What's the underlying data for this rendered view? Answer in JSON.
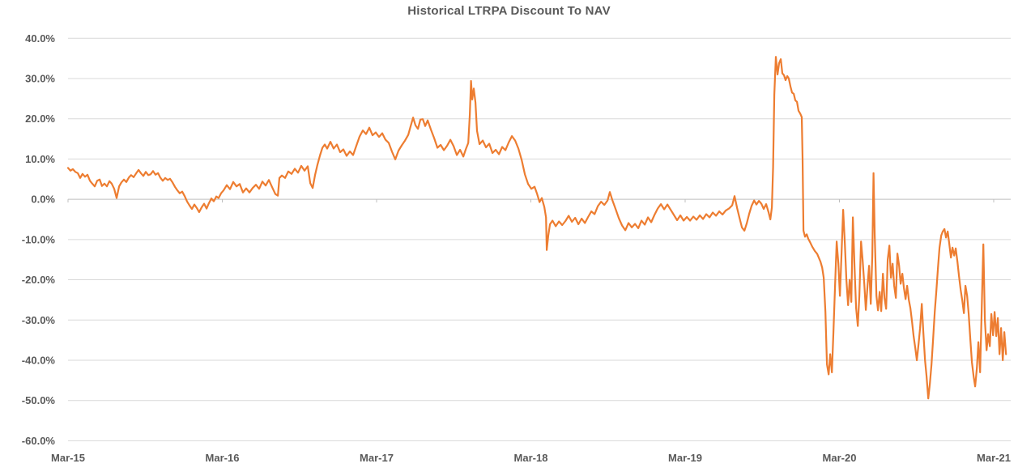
{
  "chart_data": {
    "type": "line",
    "title": "Historical LTRPA Discount To NAV",
    "series_name": "LTRPA Discount To NAV",
    "x_unit": "years since Mar-2015",
    "y_unit": "percent",
    "xlim": [
      0,
      6.1
    ],
    "ylim": [
      -60,
      40
    ],
    "grid": true,
    "legend_position": "none",
    "x_ticks": [
      {
        "t": 0,
        "label": "Mar-15"
      },
      {
        "t": 1,
        "label": "Mar-16"
      },
      {
        "t": 2,
        "label": "Mar-17"
      },
      {
        "t": 3,
        "label": "Mar-18"
      },
      {
        "t": 4,
        "label": "Mar-19"
      },
      {
        "t": 5,
        "label": "Mar-20"
      },
      {
        "t": 6,
        "label": "Mar-21"
      }
    ],
    "y_ticks": [
      {
        "v": 40,
        "label": "40.0%"
      },
      {
        "v": 30,
        "label": "30.0%"
      },
      {
        "v": 20,
        "label": "20.0%"
      },
      {
        "v": 10,
        "label": "10.0%"
      },
      {
        "v": 0,
        "label": "0.0%"
      },
      {
        "v": -10,
        "label": "-10.0%"
      },
      {
        "v": -20,
        "label": "-20.0%"
      },
      {
        "v": -30,
        "label": "-30.0%"
      },
      {
        "v": -40,
        "label": "-40.0%"
      },
      {
        "v": -50,
        "label": "-50.0%"
      },
      {
        "v": -60,
        "label": "-60.0%"
      }
    ],
    "colors": {
      "line": "#ED7D31",
      "grid": "#D9D9D9",
      "axis": "#BFBFBF",
      "text": "#595959",
      "background": "#FFFFFF"
    },
    "points": [
      [
        0.0,
        7.8
      ],
      [
        0.016,
        7.1
      ],
      [
        0.031,
        7.5
      ],
      [
        0.047,
        6.8
      ],
      [
        0.063,
        6.5
      ],
      [
        0.079,
        5.3
      ],
      [
        0.094,
        6.3
      ],
      [
        0.11,
        5.6
      ],
      [
        0.126,
        6.1
      ],
      [
        0.142,
        4.6
      ],
      [
        0.157,
        3.9
      ],
      [
        0.173,
        3.2
      ],
      [
        0.189,
        4.6
      ],
      [
        0.205,
        4.9
      ],
      [
        0.22,
        3.3
      ],
      [
        0.236,
        3.9
      ],
      [
        0.252,
        3.2
      ],
      [
        0.268,
        4.5
      ],
      [
        0.283,
        3.9
      ],
      [
        0.299,
        2.6
      ],
      [
        0.315,
        0.3
      ],
      [
        0.331,
        3.2
      ],
      [
        0.346,
        4.2
      ],
      [
        0.362,
        4.9
      ],
      [
        0.378,
        4.3
      ],
      [
        0.394,
        5.4
      ],
      [
        0.409,
        6.0
      ],
      [
        0.425,
        5.5
      ],
      [
        0.441,
        6.4
      ],
      [
        0.457,
        7.3
      ],
      [
        0.472,
        6.5
      ],
      [
        0.488,
        5.8
      ],
      [
        0.504,
        6.8
      ],
      [
        0.52,
        6.0
      ],
      [
        0.535,
        6.2
      ],
      [
        0.551,
        7.0
      ],
      [
        0.567,
        6.1
      ],
      [
        0.583,
        6.5
      ],
      [
        0.598,
        5.4
      ],
      [
        0.614,
        4.6
      ],
      [
        0.63,
        5.3
      ],
      [
        0.646,
        4.8
      ],
      [
        0.661,
        5.1
      ],
      [
        0.677,
        4.2
      ],
      [
        0.693,
        3.1
      ],
      [
        0.709,
        2.2
      ],
      [
        0.724,
        1.5
      ],
      [
        0.74,
        1.9
      ],
      [
        0.756,
        0.8
      ],
      [
        0.772,
        -0.6
      ],
      [
        0.787,
        -1.5
      ],
      [
        0.803,
        -2.4
      ],
      [
        0.819,
        -1.3
      ],
      [
        0.835,
        -2.2
      ],
      [
        0.85,
        -3.2
      ],
      [
        0.866,
        -2.0
      ],
      [
        0.882,
        -1.1
      ],
      [
        0.898,
        -2.3
      ],
      [
        0.913,
        -1.0
      ],
      [
        0.929,
        0.2
      ],
      [
        0.945,
        -0.5
      ],
      [
        0.961,
        0.7
      ],
      [
        0.976,
        0.3
      ],
      [
        0.992,
        1.5
      ],
      [
        1.008,
        2.2
      ],
      [
        1.029,
        3.5
      ],
      [
        1.05,
        2.5
      ],
      [
        1.071,
        4.3
      ],
      [
        1.092,
        3.2
      ],
      [
        1.113,
        3.8
      ],
      [
        1.134,
        1.7
      ],
      [
        1.155,
        2.7
      ],
      [
        1.176,
        1.7
      ],
      [
        1.197,
        2.8
      ],
      [
        1.218,
        3.6
      ],
      [
        1.239,
        2.6
      ],
      [
        1.26,
        4.4
      ],
      [
        1.281,
        3.4
      ],
      [
        1.302,
        4.8
      ],
      [
        1.323,
        3.0
      ],
      [
        1.344,
        1.3
      ],
      [
        1.36,
        0.9
      ],
      [
        1.37,
        5.3
      ],
      [
        1.386,
        5.9
      ],
      [
        1.407,
        5.3
      ],
      [
        1.428,
        6.9
      ],
      [
        1.449,
        6.3
      ],
      [
        1.47,
        7.6
      ],
      [
        1.491,
        6.6
      ],
      [
        1.512,
        8.3
      ],
      [
        1.533,
        7.1
      ],
      [
        1.554,
        8.2
      ],
      [
        1.57,
        4.0
      ],
      [
        1.586,
        2.8
      ],
      [
        1.601,
        6.0
      ],
      [
        1.617,
        8.6
      ],
      [
        1.633,
        10.9
      ],
      [
        1.649,
        12.8
      ],
      [
        1.664,
        13.6
      ],
      [
        1.68,
        12.6
      ],
      [
        1.701,
        14.3
      ],
      [
        1.722,
        12.6
      ],
      [
        1.743,
        13.6
      ],
      [
        1.764,
        11.7
      ],
      [
        1.785,
        12.4
      ],
      [
        1.806,
        10.8
      ],
      [
        1.827,
        11.9
      ],
      [
        1.848,
        11.0
      ],
      [
        1.869,
        13.3
      ],
      [
        1.89,
        15.6
      ],
      [
        1.911,
        17.1
      ],
      [
        1.932,
        16.2
      ],
      [
        1.953,
        17.8
      ],
      [
        1.974,
        15.9
      ],
      [
        1.995,
        16.6
      ],
      [
        2.016,
        15.5
      ],
      [
        2.037,
        16.4
      ],
      [
        2.058,
        14.8
      ],
      [
        2.079,
        14.0
      ],
      [
        2.1,
        11.8
      ],
      [
        2.121,
        9.9
      ],
      [
        2.142,
        12.1
      ],
      [
        2.163,
        13.4
      ],
      [
        2.184,
        14.6
      ],
      [
        2.205,
        16.0
      ],
      [
        2.221,
        18.2
      ],
      [
        2.237,
        20.3
      ],
      [
        2.252,
        18.4
      ],
      [
        2.268,
        17.5
      ],
      [
        2.284,
        19.8
      ],
      [
        2.3,
        19.9
      ],
      [
        2.315,
        18.2
      ],
      [
        2.331,
        19.6
      ],
      [
        2.352,
        17.3
      ],
      [
        2.373,
        15.2
      ],
      [
        2.394,
        12.8
      ],
      [
        2.415,
        13.5
      ],
      [
        2.436,
        12.2
      ],
      [
        2.457,
        13.3
      ],
      [
        2.478,
        14.8
      ],
      [
        2.499,
        13.2
      ],
      [
        2.52,
        11.0
      ],
      [
        2.541,
        12.3
      ],
      [
        2.562,
        10.6
      ],
      [
        2.578,
        12.4
      ],
      [
        2.594,
        14.0
      ],
      [
        2.604,
        21.0
      ],
      [
        2.612,
        29.4
      ],
      [
        2.62,
        24.8
      ],
      [
        2.63,
        27.5
      ],
      [
        2.641,
        24.0
      ],
      [
        2.651,
        17.0
      ],
      [
        2.667,
        13.7
      ],
      [
        2.688,
        14.6
      ],
      [
        2.709,
        12.9
      ],
      [
        2.73,
        13.8
      ],
      [
        2.751,
        11.5
      ],
      [
        2.772,
        12.3
      ],
      [
        2.793,
        11.2
      ],
      [
        2.814,
        13.0
      ],
      [
        2.835,
        12.2
      ],
      [
        2.856,
        14.1
      ],
      [
        2.877,
        15.7
      ],
      [
        2.898,
        14.6
      ],
      [
        2.919,
        12.6
      ],
      [
        2.94,
        9.8
      ],
      [
        2.961,
        6.2
      ],
      [
        2.982,
        3.8
      ],
      [
        3.003,
        2.6
      ],
      [
        3.024,
        3.1
      ],
      [
        3.04,
        1.4
      ],
      [
        3.056,
        -0.7
      ],
      [
        3.071,
        0.3
      ],
      [
        3.087,
        -1.9
      ],
      [
        3.098,
        -4.5
      ],
      [
        3.103,
        -12.6
      ],
      [
        3.113,
        -9.0
      ],
      [
        3.124,
        -6.2
      ],
      [
        3.14,
        -5.3
      ],
      [
        3.161,
        -6.7
      ],
      [
        3.182,
        -5.5
      ],
      [
        3.203,
        -6.4
      ],
      [
        3.224,
        -5.4
      ],
      [
        3.245,
        -4.1
      ],
      [
        3.266,
        -5.6
      ],
      [
        3.287,
        -4.6
      ],
      [
        3.308,
        -6.2
      ],
      [
        3.329,
        -4.8
      ],
      [
        3.35,
        -5.9
      ],
      [
        3.371,
        -4.4
      ],
      [
        3.392,
        -3.0
      ],
      [
        3.413,
        -3.7
      ],
      [
        3.434,
        -1.7
      ],
      [
        3.455,
        -0.6
      ],
      [
        3.476,
        -1.4
      ],
      [
        3.497,
        -0.3
      ],
      [
        3.512,
        1.8
      ],
      [
        3.528,
        -0.2
      ],
      [
        3.549,
        -2.4
      ],
      [
        3.57,
        -4.7
      ],
      [
        3.591,
        -6.5
      ],
      [
        3.612,
        -7.7
      ],
      [
        3.633,
        -5.9
      ],
      [
        3.654,
        -7.0
      ],
      [
        3.675,
        -6.1
      ],
      [
        3.696,
        -7.2
      ],
      [
        3.717,
        -5.3
      ],
      [
        3.738,
        -6.3
      ],
      [
        3.759,
        -4.5
      ],
      [
        3.78,
        -5.7
      ],
      [
        3.801,
        -3.9
      ],
      [
        3.822,
        -2.3
      ],
      [
        3.843,
        -1.2
      ],
      [
        3.864,
        -2.5
      ],
      [
        3.885,
        -1.3
      ],
      [
        3.906,
        -2.6
      ],
      [
        3.927,
        -3.9
      ],
      [
        3.948,
        -5.2
      ],
      [
        3.969,
        -4.0
      ],
      [
        3.99,
        -5.3
      ],
      [
        4.011,
        -4.4
      ],
      [
        4.032,
        -5.3
      ],
      [
        4.053,
        -4.3
      ],
      [
        4.074,
        -5.1
      ],
      [
        4.095,
        -4.0
      ],
      [
        4.116,
        -4.9
      ],
      [
        4.137,
        -3.7
      ],
      [
        4.158,
        -4.5
      ],
      [
        4.179,
        -3.3
      ],
      [
        4.2,
        -4.1
      ],
      [
        4.221,
        -3.0
      ],
      [
        4.242,
        -3.8
      ],
      [
        4.263,
        -2.8
      ],
      [
        4.284,
        -2.3
      ],
      [
        4.305,
        -1.5
      ],
      [
        4.32,
        0.8
      ],
      [
        4.337,
        -2.2
      ],
      [
        4.352,
        -4.6
      ],
      [
        4.368,
        -7.0
      ],
      [
        4.384,
        -7.8
      ],
      [
        4.4,
        -5.9
      ],
      [
        4.415,
        -3.6
      ],
      [
        4.431,
        -1.6
      ],
      [
        4.447,
        -0.3
      ],
      [
        4.462,
        -1.3
      ],
      [
        4.478,
        -0.4
      ],
      [
        4.494,
        -1.1
      ],
      [
        4.509,
        -2.4
      ],
      [
        4.525,
        -1.2
      ],
      [
        4.541,
        -3.3
      ],
      [
        4.552,
        -5.0
      ],
      [
        4.562,
        -2.0
      ],
      [
        4.57,
        8.0
      ],
      [
        4.578,
        26.0
      ],
      [
        4.588,
        35.4
      ],
      [
        4.599,
        31.0
      ],
      [
        4.609,
        33.8
      ],
      [
        4.62,
        34.8
      ],
      [
        4.63,
        31.3
      ],
      [
        4.641,
        30.8
      ],
      [
        4.651,
        29.6
      ],
      [
        4.662,
        30.6
      ],
      [
        4.672,
        30.0
      ],
      [
        4.683,
        28.0
      ],
      [
        4.693,
        26.5
      ],
      [
        4.704,
        26.2
      ],
      [
        4.714,
        24.6
      ],
      [
        4.725,
        24.2
      ],
      [
        4.735,
        22.0
      ],
      [
        4.746,
        21.3
      ],
      [
        4.756,
        20.4
      ],
      [
        4.761,
        10.0
      ],
      [
        4.767,
        -7.8
      ],
      [
        4.777,
        -9.3
      ],
      [
        4.788,
        -8.7
      ],
      [
        4.798,
        -9.8
      ],
      [
        4.809,
        -10.6
      ],
      [
        4.824,
        -11.8
      ],
      [
        4.84,
        -12.8
      ],
      [
        4.856,
        -13.6
      ],
      [
        4.867,
        -14.6
      ],
      [
        4.877,
        -15.5
      ],
      [
        4.888,
        -17.0
      ],
      [
        4.898,
        -19.5
      ],
      [
        4.909,
        -28.0
      ],
      [
        4.919,
        -41.0
      ],
      [
        4.93,
        -43.5
      ],
      [
        4.94,
        -38.5
      ],
      [
        4.951,
        -43.0
      ],
      [
        4.961,
        -33.0
      ],
      [
        4.972,
        -21.0
      ],
      [
        4.982,
        -10.5
      ],
      [
        4.993,
        -16.0
      ],
      [
        5.003,
        -24.0
      ],
      [
        5.014,
        -13.0
      ],
      [
        5.024,
        -2.6
      ],
      [
        5.035,
        -11.0
      ],
      [
        5.045,
        -20.0
      ],
      [
        5.056,
        -26.3
      ],
      [
        5.066,
        -20.0
      ],
      [
        5.077,
        -25.5
      ],
      [
        5.087,
        -4.5
      ],
      [
        5.098,
        -17.0
      ],
      [
        5.108,
        -27.0
      ],
      [
        5.119,
        -31.5
      ],
      [
        5.129,
        -24.0
      ],
      [
        5.14,
        -10.5
      ],
      [
        5.15,
        -15.0
      ],
      [
        5.161,
        -21.0
      ],
      [
        5.171,
        -27.5
      ],
      [
        5.182,
        -21.5
      ],
      [
        5.192,
        -16.5
      ],
      [
        5.203,
        -26.0
      ],
      [
        5.213,
        -14.0
      ],
      [
        5.221,
        6.5
      ],
      [
        5.229,
        -9.0
      ],
      [
        5.24,
        -24.0
      ],
      [
        5.25,
        -27.6
      ],
      [
        5.261,
        -23.0
      ],
      [
        5.271,
        -27.8
      ],
      [
        5.282,
        -18.5
      ],
      [
        5.292,
        -24.5
      ],
      [
        5.303,
        -27.2
      ],
      [
        5.313,
        -15.0
      ],
      [
        5.324,
        -11.5
      ],
      [
        5.334,
        -19.5
      ],
      [
        5.345,
        -16.0
      ],
      [
        5.355,
        -21.5
      ],
      [
        5.366,
        -24.5
      ],
      [
        5.376,
        -13.5
      ],
      [
        5.387,
        -16.5
      ],
      [
        5.397,
        -21.0
      ],
      [
        5.408,
        -18.5
      ],
      [
        5.418,
        -22.0
      ],
      [
        5.429,
        -24.8
      ],
      [
        5.439,
        -21.5
      ],
      [
        5.45,
        -25.0
      ],
      [
        5.46,
        -27.0
      ],
      [
        5.471,
        -30.5
      ],
      [
        5.481,
        -34.0
      ],
      [
        5.492,
        -37.0
      ],
      [
        5.502,
        -40.0
      ],
      [
        5.513,
        -36.0
      ],
      [
        5.523,
        -32.0
      ],
      [
        5.534,
        -26.0
      ],
      [
        5.544,
        -33.0
      ],
      [
        5.555,
        -40.0
      ],
      [
        5.565,
        -44.0
      ],
      [
        5.576,
        -49.5
      ],
      [
        5.586,
        -46.0
      ],
      [
        5.597,
        -41.0
      ],
      [
        5.607,
        -35.0
      ],
      [
        5.618,
        -28.0
      ],
      [
        5.628,
        -23.0
      ],
      [
        5.639,
        -17.0
      ],
      [
        5.649,
        -12.0
      ],
      [
        5.66,
        -9.0
      ],
      [
        5.67,
        -8.0
      ],
      [
        5.681,
        -7.4
      ],
      [
        5.691,
        -9.5
      ],
      [
        5.702,
        -8.0
      ],
      [
        5.712,
        -11.0
      ],
      [
        5.723,
        -14.5
      ],
      [
        5.733,
        -12.0
      ],
      [
        5.744,
        -14.0
      ],
      [
        5.754,
        -12.2
      ],
      [
        5.765,
        -15.5
      ],
      [
        5.775,
        -19.0
      ],
      [
        5.786,
        -22.5
      ],
      [
        5.796,
        -25.0
      ],
      [
        5.807,
        -28.3
      ],
      [
        5.817,
        -21.5
      ],
      [
        5.828,
        -24.0
      ],
      [
        5.838,
        -28.5
      ],
      [
        5.849,
        -35.0
      ],
      [
        5.859,
        -40.5
      ],
      [
        5.87,
        -44.0
      ],
      [
        5.88,
        -46.5
      ],
      [
        5.891,
        -42.0
      ],
      [
        5.901,
        -35.5
      ],
      [
        5.912,
        -43.0
      ],
      [
        5.922,
        -28.0
      ],
      [
        5.933,
        -11.2
      ],
      [
        5.943,
        -30.0
      ],
      [
        5.954,
        -37.5
      ],
      [
        5.964,
        -33.5
      ],
      [
        5.975,
        -36.5
      ],
      [
        5.985,
        -28.5
      ],
      [
        5.996,
        -33.8
      ],
      [
        6.006,
        -28.0
      ],
      [
        6.017,
        -34.0
      ],
      [
        6.027,
        -29.5
      ],
      [
        6.038,
        -38.5
      ],
      [
        6.048,
        -32.0
      ],
      [
        6.059,
        -40.0
      ],
      [
        6.069,
        -33.0
      ],
      [
        6.08,
        -38.5
      ]
    ]
  }
}
